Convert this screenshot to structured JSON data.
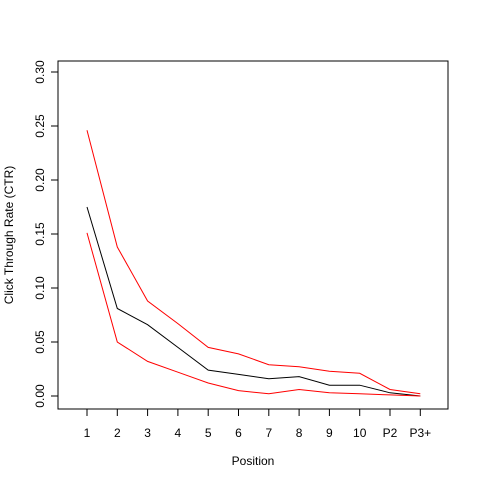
{
  "chart_data": {
    "type": "line",
    "title": "",
    "xlabel": "Position",
    "ylabel": "Click Through Rate (CTR)",
    "categories": [
      "1",
      "2",
      "3",
      "4",
      "5",
      "6",
      "7",
      "8",
      "9",
      "10",
      "P2",
      "P3+"
    ],
    "ylim": [
      0,
      0.3
    ],
    "yticks": [
      "0.00",
      "0.05",
      "0.10",
      "0.15",
      "0.20",
      "0.25",
      "0.30"
    ],
    "grid": false,
    "legend": "none",
    "series": [
      {
        "color": "#000000",
        "values": [
          0.175,
          0.081,
          0.066,
          0.045,
          0.024,
          0.02,
          0.016,
          0.018,
          0.01,
          0.01,
          0.003,
          0.0
        ]
      },
      {
        "color": "#ff0000",
        "values": [
          0.246,
          0.138,
          0.088,
          0.067,
          0.045,
          0.039,
          0.029,
          0.027,
          0.023,
          0.021,
          0.006,
          0.002
        ]
      },
      {
        "color": "#ff0000",
        "values": [
          0.151,
          0.05,
          0.032,
          0.022,
          0.012,
          0.005,
          0.002,
          0.006,
          0.003,
          0.002,
          0.001,
          0.0
        ]
      }
    ]
  }
}
